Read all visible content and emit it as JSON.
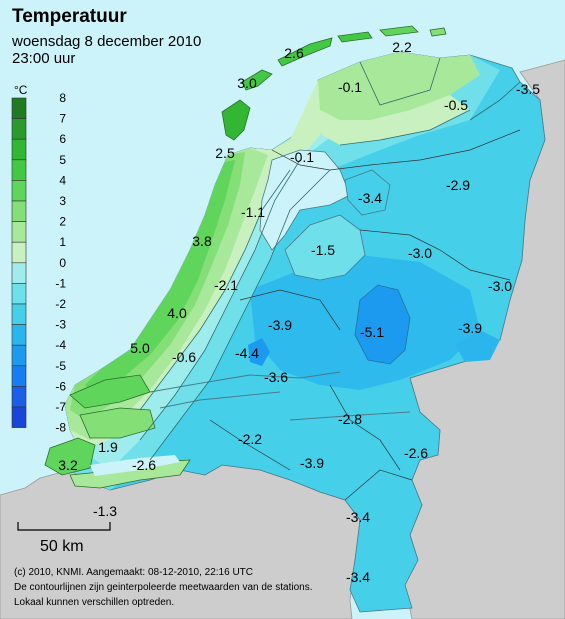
{
  "header": {
    "title": "Temperatuur",
    "date": "woensdag 8 december 2010",
    "time": "23:00 uur"
  },
  "legend": {
    "unit": "°C",
    "levels": [
      {
        "value": "8",
        "color": "#1f7a22"
      },
      {
        "value": "7",
        "color": "#2a9a2c"
      },
      {
        "value": "6",
        "color": "#33b634"
      },
      {
        "value": "5",
        "color": "#43c843"
      },
      {
        "value": "4",
        "color": "#5fd55c"
      },
      {
        "value": "3",
        "color": "#84df77"
      },
      {
        "value": "2",
        "color": "#a8e89a"
      },
      {
        "value": "1",
        "color": "#c9f1bf"
      },
      {
        "value": "0",
        "color": "#9fecec"
      },
      {
        "value": "-1",
        "color": "#6fe0ea"
      },
      {
        "value": "-2",
        "color": "#45cfe9"
      },
      {
        "value": "-3",
        "color": "#2ab6ec"
      },
      {
        "value": "-4",
        "color": "#1c9af0"
      },
      {
        "value": "-5",
        "color": "#177ef0"
      },
      {
        "value": "-6",
        "color": "#1a5fe8"
      },
      {
        "value": "-7",
        "color": "#1a45d9"
      }
    ],
    "bottom_label": "-8"
  },
  "scale": {
    "label": "50 km"
  },
  "footer": {
    "line1": "(c) 2010, KNMI. Aangemaakt: 08-12-2010, 22:16 UTC",
    "line2": "De contourlijnen zijn geinterpoleerde meetwaarden van de stations.",
    "line3": "Lokaal kunnen verschillen optreden."
  },
  "observations": [
    {
      "text": "2.6"
    },
    {
      "text": "2.2"
    },
    {
      "text": "3.0"
    },
    {
      "text": "-0.1"
    },
    {
      "text": "-0.5"
    },
    {
      "text": "-3.5"
    },
    {
      "text": "2.5"
    },
    {
      "text": "-0.1"
    },
    {
      "text": "-3.4"
    },
    {
      "text": "-2.9"
    },
    {
      "text": "-1.1"
    },
    {
      "text": "3.8"
    },
    {
      "text": "-1.5"
    },
    {
      "text": "-3.0"
    },
    {
      "text": "-2.1"
    },
    {
      "text": "-3.0"
    },
    {
      "text": "4.0"
    },
    {
      "text": "-3.9"
    },
    {
      "text": "-5.1"
    },
    {
      "text": "-3.9"
    },
    {
      "text": "5.0"
    },
    {
      "text": "-0.6"
    },
    {
      "text": "-4.4"
    },
    {
      "text": "-3.6"
    },
    {
      "text": "-2.8"
    },
    {
      "text": "1.9"
    },
    {
      "text": "-2.2"
    },
    {
      "text": "-2.6"
    },
    {
      "text": "3.2"
    },
    {
      "text": "-2.6"
    },
    {
      "text": "-3.9"
    },
    {
      "text": "-1.3"
    },
    {
      "text": "-3.4"
    },
    {
      "text": "-3.4"
    }
  ]
}
